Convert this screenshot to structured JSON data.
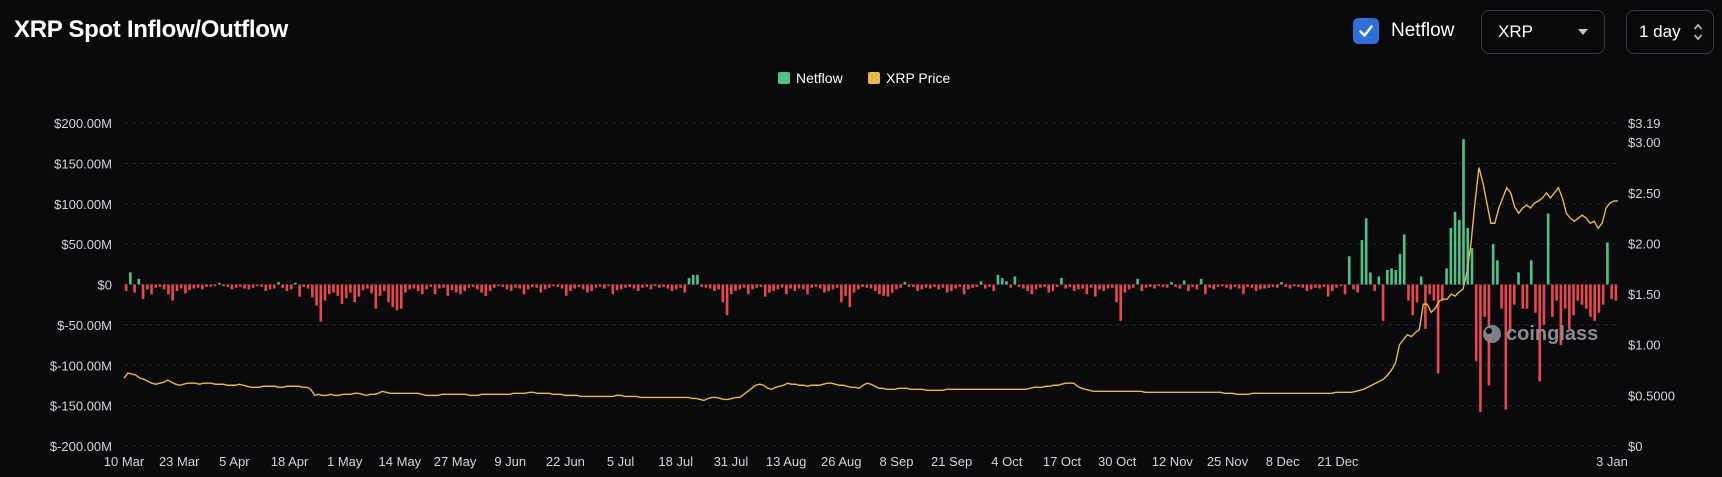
{
  "header": {
    "title": "XRP Spot Inflow/Outflow",
    "netflow_toggle": {
      "label": "Netflow",
      "checked": true
    },
    "coin_select": {
      "value": "XRP"
    },
    "interval_select": {
      "value": "1 day"
    }
  },
  "watermark": "coinglass",
  "colors": {
    "positive": "#4fbf8c",
    "negative": "#e5484d",
    "price": "#e8b84a",
    "grid": "#2c2c30"
  },
  "chart_data": {
    "type": "bar",
    "legend": [
      {
        "name": "Netflow",
        "color": "#4fbf8c"
      },
      {
        "name": "XRP Price",
        "color": "#e8b84a"
      }
    ],
    "legend_position": "top-center",
    "grid": true,
    "y_left": {
      "ticks": [
        "$200.00M",
        "$150.00M",
        "$100.00M",
        "$50.00M",
        "$0",
        "$-50.00M",
        "$-100.00M",
        "$-150.00M",
        "$-200.00M"
      ],
      "tick_values": [
        200,
        150,
        100,
        50,
        0,
        -50,
        -100,
        -150,
        -200
      ],
      "range": [
        -200,
        200
      ],
      "unit": "M USD"
    },
    "y_right": {
      "ticks": [
        "$3.19",
        "$3.00",
        "$2.50",
        "$2.00",
        "$1.50",
        "$1.00",
        "$0.5000",
        "$0"
      ],
      "tick_values": [
        3.19,
        3.0,
        2.5,
        2.0,
        1.5,
        1.0,
        0.5,
        0
      ],
      "range": [
        0,
        3.19
      ]
    },
    "x_ticks": [
      "10 Mar",
      "23 Mar",
      "5 Apr",
      "18 Apr",
      "1 May",
      "14 May",
      "27 May",
      "9 Jun",
      "22 Jun",
      "5 Jul",
      "18 Jul",
      "31 Jul",
      "13 Aug",
      "26 Aug",
      "8 Sep",
      "21 Sep",
      "4 Oct",
      "17 Oct",
      "30 Oct",
      "12 Nov",
      "25 Nov",
      "8 Dec",
      "21 Dec",
      "3 Jan"
    ],
    "x_tick_index": [
      0,
      13,
      26,
      39,
      52,
      65,
      78,
      91,
      104,
      117,
      130,
      143,
      156,
      169,
      182,
      195,
      208,
      221,
      234,
      247,
      260,
      273,
      286,
      299
    ],
    "series": [
      {
        "name": "Netflow",
        "kind": "bar",
        "unit": "M USD",
        "values": [
          -8,
          15,
          -10,
          7,
          -18,
          -6,
          -12,
          -4,
          -3,
          -6,
          -12,
          -20,
          -8,
          -5,
          -11,
          -7,
          -5,
          -4,
          -6,
          -3,
          -3,
          -2,
          2,
          -2,
          -3,
          -6,
          -4,
          -3,
          -5,
          -6,
          -4,
          -2,
          -3,
          -8,
          -6,
          -5,
          3,
          -4,
          -8,
          -6,
          2,
          -15,
          -3,
          -5,
          -16,
          -26,
          -46,
          -20,
          -12,
          -10,
          -14,
          -24,
          -17,
          -10,
          -22,
          -15,
          -7,
          -5,
          -11,
          -30,
          -14,
          -8,
          -22,
          -28,
          -32,
          -30,
          -10,
          -6,
          -5,
          -8,
          -12,
          -6,
          -3,
          -12,
          -5,
          -4,
          -14,
          -7,
          -10,
          -12,
          -8,
          -4,
          -3,
          -6,
          -10,
          -14,
          -8,
          -4,
          -2,
          -3,
          -6,
          -8,
          -4,
          -5,
          -12,
          -6,
          -3,
          -4,
          -10,
          -6,
          -4,
          -2,
          -3,
          -5,
          -14,
          -8,
          -5,
          -3,
          -6,
          -10,
          -8,
          -4,
          -3,
          -5,
          -2,
          -12,
          -7,
          -6,
          -4,
          -3,
          -5,
          -8,
          -4,
          -3,
          -6,
          -2,
          -4,
          -3,
          -5,
          -8,
          -6,
          -4,
          -10,
          8,
          12,
          12,
          -3,
          -4,
          -5,
          -8,
          -6,
          -22,
          -38,
          -12,
          -8,
          -6,
          -4,
          -12,
          -6,
          -4,
          -3,
          -15,
          -10,
          -8,
          -6,
          -4,
          -12,
          -5,
          -8,
          -5,
          -6,
          -12,
          -4,
          -3,
          -5,
          -10,
          -8,
          -6,
          -4,
          -22,
          -14,
          -28,
          -10,
          -6,
          -3,
          -4,
          -5,
          -8,
          -12,
          -14,
          -15,
          -10,
          -6,
          -4,
          3,
          -3,
          -3,
          -8,
          -6,
          -4,
          -5,
          -3,
          -6,
          -4,
          -10,
          -8,
          -5,
          -3,
          -12,
          -6,
          -4,
          -3,
          4,
          -5,
          -3,
          -8,
          12,
          8,
          4,
          -4,
          10,
          -3,
          -5,
          -8,
          -12,
          -6,
          -4,
          -3,
          -10,
          -8,
          -3,
          8,
          -5,
          -3,
          -8,
          -6,
          -5,
          -12,
          -4,
          -15,
          -6,
          -8,
          -5,
          -4,
          -22,
          -45,
          -10,
          -6,
          -4,
          7,
          -8,
          -4,
          -3,
          -5,
          -2,
          -3,
          -4,
          3,
          -3,
          -5,
          5,
          -8,
          -3,
          -6,
          7,
          -12,
          -4,
          -6,
          -3,
          -2,
          -4,
          -6,
          -3,
          -5,
          -12,
          -3,
          -4,
          -8,
          -6,
          -5,
          -4,
          -3,
          -4,
          3,
          -3,
          -5,
          -2,
          -3,
          -4,
          -8,
          -6,
          -4,
          -5,
          -3,
          -15,
          -8,
          -4,
          -2,
          -12,
          35,
          -6,
          -10,
          55,
          82,
          15,
          -8,
          10,
          -45,
          18,
          20,
          18,
          38,
          62,
          -20,
          -38,
          -22,
          10,
          -55,
          -12,
          -20,
          -110,
          -20,
          20,
          70,
          90,
          80,
          180,
          70,
          45,
          -95,
          -158,
          -40,
          -125,
          50,
          30,
          -30,
          -155,
          -60,
          -25,
          15,
          -30,
          -30,
          30,
          -35,
          -120,
          -50,
          88,
          -40,
          -20,
          -75,
          -30,
          -55,
          -38,
          -20,
          -25,
          -30,
          -40,
          -45,
          -35,
          -25,
          52,
          -18,
          -20
        ]
      },
      {
        "name": "XRP Price",
        "kind": "line",
        "values": [
          0.67,
          0.72,
          0.71,
          0.7,
          0.67,
          0.66,
          0.64,
          0.62,
          0.61,
          0.62,
          0.63,
          0.65,
          0.63,
          0.61,
          0.6,
          0.61,
          0.62,
          0.62,
          0.62,
          0.61,
          0.62,
          0.62,
          0.62,
          0.61,
          0.61,
          0.61,
          0.6,
          0.6,
          0.6,
          0.61,
          0.6,
          0.59,
          0.58,
          0.58,
          0.58,
          0.59,
          0.59,
          0.59,
          0.59,
          0.58,
          0.58,
          0.59,
          0.59,
          0.59,
          0.59,
          0.58,
          0.58,
          0.56,
          0.5,
          0.51,
          0.5,
          0.5,
          0.51,
          0.5,
          0.5,
          0.51,
          0.51,
          0.51,
          0.52,
          0.52,
          0.51,
          0.5,
          0.51,
          0.51,
          0.52,
          0.54,
          0.53,
          0.52,
          0.52,
          0.52,
          0.52,
          0.52,
          0.52,
          0.52,
          0.52,
          0.51,
          0.5,
          0.5,
          0.5,
          0.5,
          0.51,
          0.51,
          0.51,
          0.51,
          0.51,
          0.51,
          0.51,
          0.5,
          0.5,
          0.5,
          0.51,
          0.51,
          0.51,
          0.51,
          0.51,
          0.51,
          0.51,
          0.51,
          0.52,
          0.52,
          0.52,
          0.52,
          0.53,
          0.53,
          0.52,
          0.52,
          0.52,
          0.52,
          0.51,
          0.51,
          0.51,
          0.5,
          0.5,
          0.5,
          0.5,
          0.49,
          0.49,
          0.49,
          0.49,
          0.49,
          0.49,
          0.49,
          0.49,
          0.49,
          0.5,
          0.5,
          0.49,
          0.49,
          0.49,
          0.49,
          0.48,
          0.48,
          0.48,
          0.48,
          0.48,
          0.48,
          0.48,
          0.48,
          0.48,
          0.48,
          0.48,
          0.48,
          0.48,
          0.47,
          0.47,
          0.46,
          0.45,
          0.47,
          0.48,
          0.48,
          0.47,
          0.46,
          0.46,
          0.47,
          0.48,
          0.48,
          0.51,
          0.54,
          0.57,
          0.6,
          0.61,
          0.6,
          0.57,
          0.56,
          0.58,
          0.59,
          0.6,
          0.62,
          0.61,
          0.61,
          0.6,
          0.6,
          0.59,
          0.6,
          0.6,
          0.6,
          0.61,
          0.62,
          0.62,
          0.61,
          0.6,
          0.6,
          0.59,
          0.58,
          0.58,
          0.57,
          0.6,
          0.62,
          0.61,
          0.59,
          0.57,
          0.57,
          0.56,
          0.56,
          0.56,
          0.57,
          0.57,
          0.57,
          0.56,
          0.56,
          0.56,
          0.56,
          0.55,
          0.55,
          0.55,
          0.55,
          0.55,
          0.56,
          0.56,
          0.56,
          0.56,
          0.56,
          0.56,
          0.56,
          0.56,
          0.56,
          0.56,
          0.56,
          0.56,
          0.56,
          0.56,
          0.56,
          0.56,
          0.56,
          0.56,
          0.56,
          0.56,
          0.56,
          0.57,
          0.58,
          0.58,
          0.58,
          0.59,
          0.59,
          0.6,
          0.6,
          0.61,
          0.62,
          0.62,
          0.62,
          0.59,
          0.57,
          0.56,
          0.55,
          0.54,
          0.54,
          0.54,
          0.54,
          0.54,
          0.54,
          0.54,
          0.54,
          0.54,
          0.54,
          0.54,
          0.54,
          0.54,
          0.53,
          0.53,
          0.53,
          0.53,
          0.53,
          0.53,
          0.53,
          0.53,
          0.53,
          0.53,
          0.53,
          0.53,
          0.53,
          0.53,
          0.53,
          0.53,
          0.53,
          0.53,
          0.53,
          0.53,
          0.52,
          0.52,
          0.52,
          0.51,
          0.51,
          0.51,
          0.51,
          0.52,
          0.52,
          0.52,
          0.52,
          0.52,
          0.52,
          0.52,
          0.52,
          0.52,
          0.52,
          0.52,
          0.52,
          0.52,
          0.52,
          0.52,
          0.52,
          0.52,
          0.52,
          0.52,
          0.52,
          0.52,
          0.53,
          0.53,
          0.53,
          0.53,
          0.53,
          0.54,
          0.55,
          0.56,
          0.58,
          0.6,
          0.62,
          0.64,
          0.66,
          0.7,
          0.75,
          0.82,
          1.0,
          1.05,
          1.1,
          1.08,
          1.12,
          1.15,
          1.4,
          1.4,
          1.32,
          1.36,
          1.43,
          1.45,
          1.45,
          1.5,
          1.48,
          1.52,
          1.55,
          1.72,
          2.0,
          2.4,
          2.75,
          2.6,
          2.4,
          2.2,
          2.2,
          2.35,
          2.45,
          2.55,
          2.5,
          2.36,
          2.3,
          2.35,
          2.38,
          2.35,
          2.4,
          2.42,
          2.45,
          2.5,
          2.45,
          2.5,
          2.55,
          2.45,
          2.3,
          2.25,
          2.22,
          2.25,
          2.28,
          2.25,
          2.2,
          2.22,
          2.15,
          2.2,
          2.35,
          2.4,
          2.42,
          2.42
        ]
      }
    ]
  }
}
